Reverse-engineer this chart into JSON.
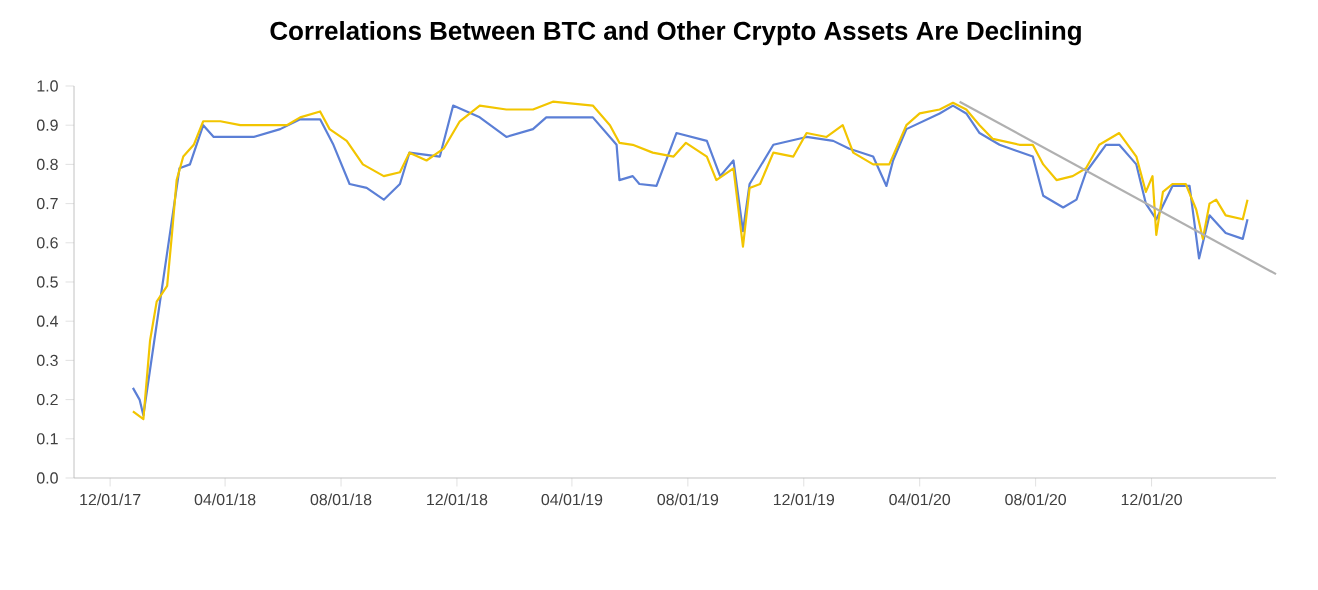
{
  "chart_data": {
    "type": "line",
    "title": "Correlations Between BTC and Other Crypto Assets Are Declining",
    "xlim": [
      "2017-10-24",
      "2021-04-11"
    ],
    "ylim": [
      0,
      1.0
    ],
    "xticks": [
      {
        "value": "2017-12-01",
        "label": "12/01/17"
      },
      {
        "value": "2018-04-01",
        "label": "04/01/18"
      },
      {
        "value": "2018-08-01",
        "label": "08/01/18"
      },
      {
        "value": "2018-12-01",
        "label": "12/01/18"
      },
      {
        "value": "2019-04-01",
        "label": "04/01/19"
      },
      {
        "value": "2019-08-01",
        "label": "08/01/19"
      },
      {
        "value": "2019-12-01",
        "label": "12/01/19"
      },
      {
        "value": "2020-04-01",
        "label": "04/01/20"
      },
      {
        "value": "2020-08-01",
        "label": "08/01/20"
      },
      {
        "value": "2020-12-01",
        "label": "12/01/20"
      }
    ],
    "yticks": [
      {
        "value": 0,
        "label": "0.0"
      },
      0.1,
      0.2,
      0.3,
      0.4,
      0.5,
      0.6,
      0.7,
      0.8,
      0.9,
      {
        "value": 1,
        "label": "1.0"
      }
    ],
    "grid": false,
    "legend": false,
    "marker": "none",
    "line_style": "solid",
    "series": [
      {
        "color": "#5b7fd6",
        "x": [
          "2017-12-25",
          "2018-01-01",
          "2018-01-05",
          "2018-02-12",
          "2018-02-23",
          "2018-03-09",
          "2018-03-20",
          "2018-04-06",
          "2018-05-01",
          "2018-05-29",
          "2018-06-19",
          "2018-07-10",
          "2018-07-24",
          "2018-08-10",
          "2018-08-28",
          "2018-09-15",
          "2018-10-02",
          "2018-10-12",
          "2018-11-13",
          "2018-11-27",
          "2018-12-25",
          "2019-01-22",
          "2019-02-19",
          "2019-03-05",
          "2019-04-23",
          "2019-05-18",
          "2019-05-21",
          "2019-06-04",
          "2019-06-11",
          "2019-06-29",
          "2019-07-20",
          "2019-08-21",
          "2019-09-04",
          "2019-09-18",
          "2019-09-28",
          "2019-10-05",
          "2019-10-30",
          "2019-12-04",
          "2020-01-01",
          "2020-01-18",
          "2020-02-12",
          "2020-02-26",
          "2020-03-04",
          "2020-03-18",
          "2020-04-22",
          "2020-05-06",
          "2020-05-20",
          "2020-06-03",
          "2020-06-24",
          "2020-07-29",
          "2020-08-09",
          "2020-08-30",
          "2020-09-13",
          "2020-09-23",
          "2020-10-14",
          "2020-10-28",
          "2020-11-15",
          "2020-11-25",
          "2020-12-06",
          "2020-12-23",
          "2021-01-10",
          "2021-01-20",
          "2021-01-31",
          "2021-02-17",
          "2021-03-07",
          "2021-03-12"
        ],
        "values": [
          0.23,
          0.2,
          0.16,
          0.79,
          0.8,
          0.9,
          0.87,
          0.87,
          0.87,
          0.89,
          0.915,
          0.915,
          0.85,
          0.75,
          0.74,
          0.71,
          0.75,
          0.83,
          0.82,
          0.95,
          0.92,
          0.87,
          0.89,
          0.92,
          0.92,
          0.85,
          0.76,
          0.77,
          0.75,
          0.745,
          0.88,
          0.86,
          0.77,
          0.81,
          0.63,
          0.75,
          0.85,
          0.87,
          0.86,
          0.84,
          0.82,
          0.745,
          0.81,
          0.89,
          0.93,
          0.95,
          0.93,
          0.88,
          0.85,
          0.82,
          0.72,
          0.69,
          0.71,
          0.78,
          0.85,
          0.85,
          0.8,
          0.7,
          0.66,
          0.745,
          0.745,
          0.56,
          0.67,
          0.625,
          0.61,
          0.66
        ]
      },
      {
        "color": "#f2c500",
        "x": [
          "2017-12-25",
          "2018-01-05",
          "2018-01-12",
          "2018-01-19",
          "2018-01-30",
          "2018-02-04",
          "2018-02-09",
          "2018-02-16",
          "2018-02-27",
          "2018-03-09",
          "2018-03-27",
          "2018-04-17",
          "2018-05-15",
          "2018-06-05",
          "2018-06-19",
          "2018-07-10",
          "2018-07-20",
          "2018-08-07",
          "2018-08-24",
          "2018-09-15",
          "2018-10-02",
          "2018-10-12",
          "2018-10-30",
          "2018-11-17",
          "2018-12-04",
          "2018-12-25",
          "2019-01-22",
          "2019-02-19",
          "2019-03-12",
          "2019-04-23",
          "2019-05-11",
          "2019-05-21",
          "2019-06-04",
          "2019-06-25",
          "2019-07-17",
          "2019-07-30",
          "2019-08-21",
          "2019-08-31",
          "2019-09-18",
          "2019-09-28",
          "2019-10-05",
          "2019-10-16",
          "2019-10-30",
          "2019-11-20",
          "2019-12-04",
          "2019-12-25",
          "2020-01-11",
          "2020-01-22",
          "2020-02-12",
          "2020-02-29",
          "2020-03-18",
          "2020-04-01",
          "2020-04-22",
          "2020-05-06",
          "2020-05-20",
          "2020-06-03",
          "2020-06-17",
          "2020-07-15",
          "2020-07-29",
          "2020-08-09",
          "2020-08-23",
          "2020-09-09",
          "2020-09-23",
          "2020-10-07",
          "2020-10-28",
          "2020-11-15",
          "2020-11-25",
          "2020-12-02",
          "2020-12-06",
          "2020-12-13",
          "2020-12-23",
          "2021-01-06",
          "2021-01-17",
          "2021-01-24",
          "2021-01-31",
          "2021-02-07",
          "2021-02-17",
          "2021-03-07",
          "2021-03-12"
        ],
        "values": [
          0.17,
          0.15,
          0.35,
          0.45,
          0.49,
          0.62,
          0.76,
          0.82,
          0.85,
          0.91,
          0.91,
          0.9,
          0.9,
          0.9,
          0.92,
          0.935,
          0.89,
          0.86,
          0.8,
          0.77,
          0.78,
          0.83,
          0.81,
          0.84,
          0.91,
          0.95,
          0.94,
          0.94,
          0.96,
          0.95,
          0.9,
          0.855,
          0.85,
          0.83,
          0.82,
          0.855,
          0.82,
          0.76,
          0.79,
          0.59,
          0.74,
          0.75,
          0.83,
          0.82,
          0.88,
          0.87,
          0.9,
          0.83,
          0.8,
          0.8,
          0.9,
          0.93,
          0.94,
          0.957,
          0.94,
          0.9,
          0.865,
          0.85,
          0.85,
          0.8,
          0.76,
          0.77,
          0.79,
          0.85,
          0.88,
          0.82,
          0.73,
          0.77,
          0.62,
          0.73,
          0.75,
          0.75,
          0.685,
          0.61,
          0.7,
          0.71,
          0.67,
          0.66,
          0.71
        ]
      },
      {
        "type": "line",
        "color": "#b0b0b0",
        "x": [
          "2020-05-13",
          "2021-04-11"
        ],
        "values": [
          0.96,
          0.52
        ]
      }
    ]
  }
}
